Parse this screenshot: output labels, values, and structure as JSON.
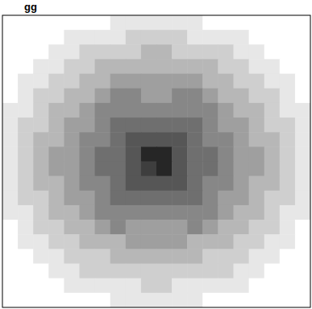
{
  "chart_data": {
    "type": "heatmap",
    "title": "gg",
    "color": "#000000",
    "tick_labels": false,
    "grid": false,
    "zlim": [
      0,
      9
    ],
    "cells": [
      [
        0,
        0,
        0,
        0,
        0,
        0,
        0,
        1,
        1,
        1,
        1,
        1,
        1,
        0,
        0,
        0,
        0,
        0,
        0,
        0
      ],
      [
        0,
        0,
        0,
        0,
        1,
        1,
        1,
        1,
        2,
        2,
        2,
        2,
        1,
        1,
        1,
        1,
        0,
        0,
        0,
        0
      ],
      [
        0,
        0,
        0,
        1,
        1,
        2,
        2,
        2,
        2,
        3,
        3,
        2,
        2,
        2,
        2,
        1,
        1,
        0,
        0,
        0
      ],
      [
        0,
        0,
        1,
        1,
        2,
        2,
        3,
        3,
        3,
        3,
        3,
        3,
        3,
        3,
        2,
        2,
        1,
        1,
        0,
        0
      ],
      [
        0,
        1,
        1,
        2,
        2,
        3,
        3,
        4,
        4,
        4,
        4,
        4,
        4,
        3,
        3,
        2,
        2,
        1,
        1,
        0
      ],
      [
        0,
        1,
        2,
        2,
        3,
        3,
        4,
        5,
        5,
        4,
        4,
        5,
        5,
        4,
        3,
        3,
        2,
        2,
        1,
        0
      ],
      [
        1,
        1,
        2,
        3,
        3,
        4,
        5,
        5,
        5,
        5,
        5,
        5,
        5,
        5,
        4,
        3,
        3,
        2,
        1,
        1
      ],
      [
        1,
        2,
        2,
        3,
        4,
        4,
        5,
        6,
        6,
        6,
        6,
        6,
        6,
        5,
        4,
        4,
        3,
        2,
        2,
        1
      ],
      [
        1,
        2,
        3,
        3,
        4,
        5,
        5,
        6,
        7,
        7,
        7,
        7,
        6,
        5,
        5,
        4,
        3,
        3,
        2,
        1
      ],
      [
        1,
        2,
        3,
        4,
        4,
        5,
        6,
        6,
        7,
        9,
        9,
        7,
        6,
        6,
        5,
        4,
        4,
        3,
        2,
        1
      ],
      [
        1,
        2,
        3,
        4,
        4,
        5,
        6,
        6,
        7,
        8,
        9,
        7,
        6,
        6,
        5,
        4,
        4,
        3,
        2,
        1
      ],
      [
        1,
        2,
        3,
        3,
        4,
        5,
        5,
        6,
        7,
        7,
        7,
        7,
        6,
        5,
        5,
        4,
        3,
        3,
        2,
        1
      ],
      [
        1,
        2,
        2,
        3,
        4,
        4,
        5,
        6,
        6,
        6,
        6,
        6,
        6,
        5,
        4,
        4,
        3,
        2,
        2,
        1
      ],
      [
        1,
        1,
        2,
        3,
        3,
        4,
        5,
        5,
        5,
        5,
        5,
        5,
        5,
        5,
        4,
        3,
        3,
        2,
        1,
        1
      ],
      [
        0,
        1,
        2,
        2,
        3,
        3,
        4,
        5,
        4,
        4,
        4,
        4,
        5,
        4,
        3,
        3,
        2,
        2,
        1,
        0
      ],
      [
        0,
        1,
        1,
        2,
        2,
        3,
        3,
        3,
        4,
        4,
        4,
        4,
        3,
        3,
        3,
        2,
        2,
        1,
        1,
        0
      ],
      [
        0,
        0,
        1,
        1,
        2,
        2,
        2,
        3,
        3,
        3,
        3,
        3,
        3,
        2,
        2,
        2,
        1,
        1,
        0,
        0
      ],
      [
        0,
        0,
        0,
        1,
        1,
        2,
        2,
        2,
        2,
        2,
        2,
        2,
        2,
        2,
        2,
        1,
        1,
        0,
        0,
        0
      ],
      [
        0,
        0,
        0,
        0,
        1,
        1,
        1,
        1,
        1,
        2,
        2,
        1,
        1,
        1,
        1,
        1,
        0,
        0,
        0,
        0
      ],
      [
        0,
        0,
        0,
        0,
        0,
        0,
        0,
        1,
        1,
        1,
        1,
        1,
        1,
        0,
        0,
        0,
        0,
        0,
        0,
        0
      ]
    ]
  }
}
